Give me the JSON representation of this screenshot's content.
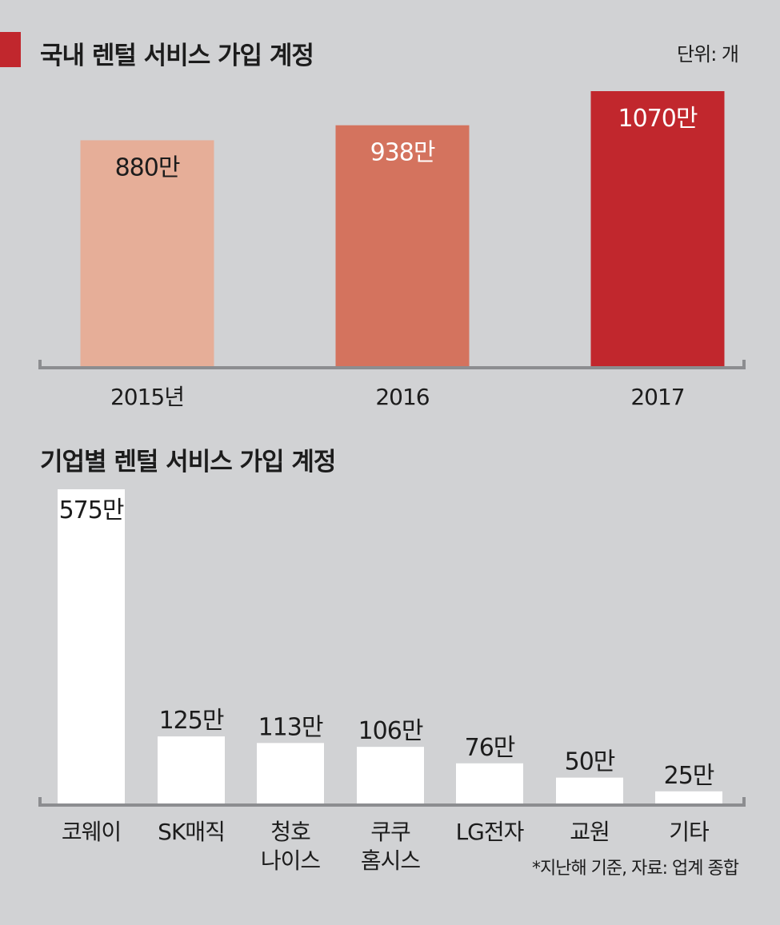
{
  "charts": {
    "top": {
      "title": "국내 렌털 서비스 가입 계정",
      "unit_note": "단위: 개"
    },
    "bottom": {
      "title": "기업별 렌털 서비스 가입 계정",
      "source_note": "*지난해 기준, 자료: 업계 종합"
    }
  },
  "chart_data": [
    {
      "type": "bar",
      "title": "국내 렌털 서비스 가입 계정",
      "categories": [
        "2015년",
        "2016",
        "2017"
      ],
      "values": [
        880,
        938,
        1070
      ],
      "value_labels": [
        "880만",
        "938만",
        "1070만"
      ],
      "bar_colors": [
        "#e6ae98",
        "#d4735e",
        "#c1272d"
      ],
      "label_colors": [
        "#1c1c1c",
        "#ffffff",
        "#ffffff"
      ],
      "ylim": [
        0,
        1070
      ],
      "grid": false
    },
    {
      "type": "bar",
      "title": "기업별 렌털 서비스 가입 계정",
      "categories": [
        [
          "코웨이"
        ],
        [
          "SK매직"
        ],
        [
          "청호",
          "나이스"
        ],
        [
          "쿠쿠",
          "홈시스"
        ],
        [
          "LG전자"
        ],
        [
          "교원"
        ],
        [
          "기타"
        ]
      ],
      "values": [
        575,
        125,
        113,
        106,
        76,
        50,
        25
      ],
      "value_labels": [
        "575만",
        "125만",
        "113만",
        "106만",
        "76만",
        "50만",
        "25만"
      ],
      "bar_color": "#ffffff",
      "ylim": [
        0,
        575
      ],
      "grid": false
    }
  ]
}
